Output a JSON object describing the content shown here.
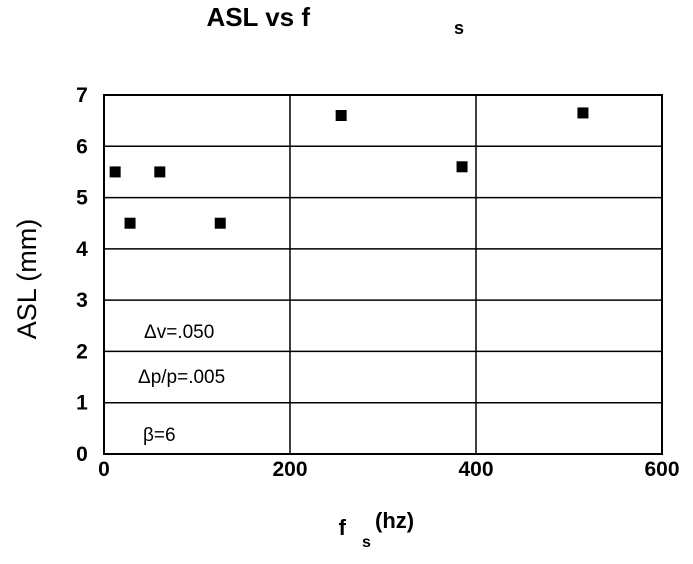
{
  "chart_data": {
    "type": "scatter",
    "title": "ASL vs f",
    "title_subscript": "s",
    "xlabel": "f",
    "xlabel_subscript": "s",
    "xlabel_unit": "(hz)",
    "ylabel": "ASL (mm)",
    "xlim": [
      0,
      600
    ],
    "ylim": [
      0,
      7
    ],
    "x_ticks": [
      "0",
      "200",
      "400",
      "600"
    ],
    "y_ticks": [
      "0",
      "1",
      "2",
      "3",
      "4",
      "5",
      "6",
      "7"
    ],
    "x_gridlines": [
      200,
      400
    ],
    "y_gridlines": [
      1,
      2,
      3,
      4,
      5,
      6
    ],
    "grid": true,
    "legend": "none",
    "marker_color": "#000000",
    "points": [
      {
        "x": 12,
        "y": 5.5
      },
      {
        "x": 28,
        "y": 4.5
      },
      {
        "x": 60,
        "y": 5.5
      },
      {
        "x": 125,
        "y": 4.5
      },
      {
        "x": 255,
        "y": 6.6
      },
      {
        "x": 385,
        "y": 5.6
      },
      {
        "x": 515,
        "y": 6.65
      }
    ],
    "annotations": [
      "Δv=.050",
      "Δp/p=.005",
      "β=6"
    ]
  }
}
